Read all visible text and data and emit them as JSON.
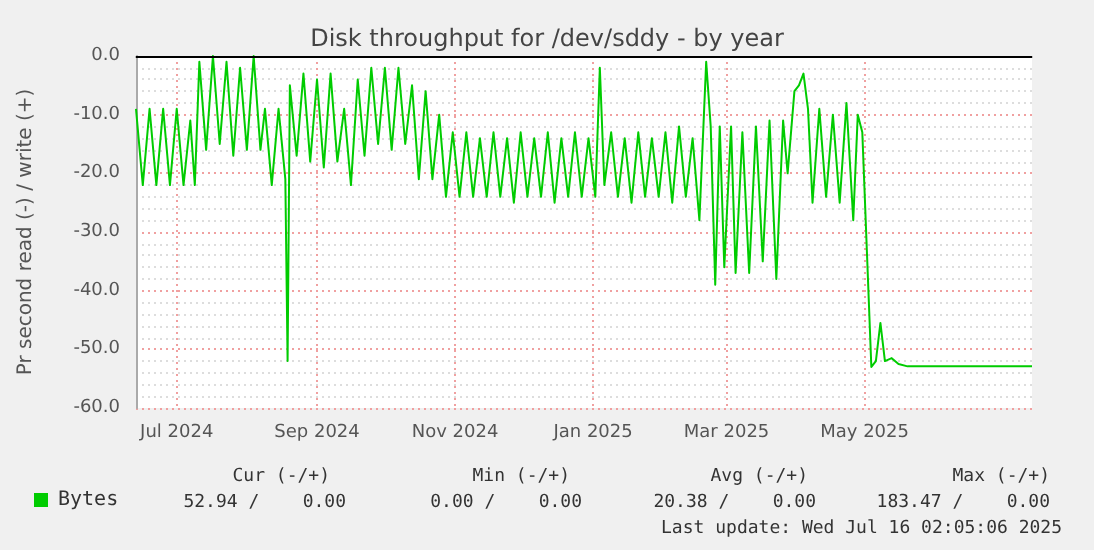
{
  "chart_data": {
    "type": "line",
    "title": "Disk throughput for /dev/sddy - by year",
    "ylabel": "Pr second read (-) / write (+)",
    "xlim": [
      "2024-06-13",
      "2025-07-14"
    ],
    "xticks": [
      {
        "value": "2024-07-01",
        "label": "Jul 2024"
      },
      {
        "value": "2024-09-01",
        "label": "Sep 2024"
      },
      {
        "value": "2024-11-01",
        "label": "Nov 2024"
      },
      {
        "value": "2025-01-01",
        "label": "Jan 2025"
      },
      {
        "value": "2025-03-01",
        "label": "Mar 2025"
      },
      {
        "value": "2025-05-01",
        "label": "May 2025"
      }
    ],
    "ylim": [
      -60,
      0
    ],
    "yticks": [
      {
        "value": -60,
        "label": "-60.0"
      },
      {
        "value": -50,
        "label": "-50.0"
      },
      {
        "value": -40,
        "label": "-40.0"
      },
      {
        "value": -30,
        "label": "-30.0"
      },
      {
        "value": -20,
        "label": "-20.0"
      },
      {
        "value": -10,
        "label": "-10.0"
      },
      {
        "value": 0,
        "label": "0.0"
      }
    ],
    "grid": true,
    "legend": "bottom left",
    "marker": "none",
    "line_style": "solid",
    "ref_lines": [
      {
        "axis": "y",
        "value": 0,
        "label": null,
        "color": "#000000"
      }
    ],
    "annotations": [
      "Cur (-/+)",
      "Min (-/+)",
      "Avg (-/+)",
      "Max (-/+)",
      "52.94 /    0.00",
      "0.00 /    0.00",
      "20.38 /    0.00",
      "183.47 /    0.00",
      "Last update: Wed Jul 16 02:05:06 2025"
    ],
    "x": [
      "2024-06-13",
      "2024-06-16",
      "2024-06-19",
      "2024-06-22",
      "2024-06-25",
      "2024-06-28",
      "2024-07-01",
      "2024-07-04",
      "2024-07-07",
      "2024-07-09",
      "2024-07-11",
      "2024-07-14",
      "2024-07-17",
      "2024-07-20",
      "2024-07-23",
      "2024-07-26",
      "2024-07-29",
      "2024-08-01",
      "2024-08-04",
      "2024-08-07",
      "2024-08-09",
      "2024-08-12",
      "2024-08-15",
      "2024-08-18",
      "2024-08-19",
      "2024-08-20",
      "2024-08-23",
      "2024-08-26",
      "2024-08-29",
      "2024-09-01",
      "2024-09-04",
      "2024-09-07",
      "2024-09-10",
      "2024-09-13",
      "2024-09-16",
      "2024-09-19",
      "2024-09-22",
      "2024-09-25",
      "2024-09-28",
      "2024-10-01",
      "2024-10-04",
      "2024-10-07",
      "2024-10-10",
      "2024-10-13",
      "2024-10-16",
      "2024-10-19",
      "2024-10-22",
      "2024-10-25",
      "2024-10-28",
      "2024-10-31",
      "2024-11-03",
      "2024-11-06",
      "2024-11-09",
      "2024-11-12",
      "2024-11-15",
      "2024-11-18",
      "2024-11-21",
      "2024-11-24",
      "2024-11-27",
      "2024-11-30",
      "2024-12-03",
      "2024-12-06",
      "2024-12-09",
      "2024-12-12",
      "2024-12-15",
      "2024-12-18",
      "2024-12-21",
      "2024-12-24",
      "2024-12-27",
      "2024-12-30",
      "2025-01-02",
      "2025-01-04",
      "2025-01-06",
      "2025-01-09",
      "2025-01-12",
      "2025-01-15",
      "2025-01-18",
      "2025-01-21",
      "2025-01-24",
      "2025-01-27",
      "2025-01-30",
      "2025-02-02",
      "2025-02-05",
      "2025-02-08",
      "2025-02-11",
      "2025-02-14",
      "2025-02-17",
      "2025-02-20",
      "2025-02-22",
      "2025-02-24",
      "2025-02-26",
      "2025-02-28",
      "2025-03-03",
      "2025-03-05",
      "2025-03-08",
      "2025-03-11",
      "2025-03-14",
      "2025-03-17",
      "2025-03-20",
      "2025-03-23",
      "2025-03-26",
      "2025-03-28",
      "2025-03-31",
      "2025-04-02",
      "2025-04-04",
      "2025-04-06",
      "2025-04-08",
      "2025-04-11",
      "2025-04-14",
      "2025-04-17",
      "2025-04-20",
      "2025-04-23",
      "2025-04-26",
      "2025-04-28",
      "2025-04-30",
      "2025-05-04",
      "2025-05-06",
      "2025-05-08",
      "2025-05-10",
      "2025-05-13",
      "2025-05-16",
      "2025-05-20",
      "2025-07-14"
    ],
    "series": [
      {
        "name": "Bytes",
        "color": "#00cc00",
        "values": [
          -9,
          -22,
          -9,
          -22,
          -9,
          -22,
          -9,
          -22,
          -11,
          -22,
          -1,
          -16,
          0,
          -15,
          -1,
          -17,
          -2,
          -16,
          0,
          -16,
          -9,
          -22,
          -9,
          -21,
          -52,
          -5,
          -17,
          -3,
          -18,
          -4,
          -19,
          -3,
          -18,
          -9,
          -22,
          -4,
          -17,
          -2,
          -15,
          -2,
          -16,
          -2,
          -15,
          -5,
          -21,
          -6,
          -21,
          -10,
          -24,
          -13,
          -24,
          -13,
          -24,
          -14,
          -24,
          -13,
          -24,
          -14,
          -25,
          -13,
          -24,
          -14,
          -24,
          -13,
          -25,
          -14,
          -24,
          -13,
          -24,
          -14,
          -24,
          -2,
          -22,
          -13,
          -24,
          -14,
          -25,
          -13,
          -24,
          -14,
          -24,
          -13,
          -25,
          -12,
          -24,
          -14,
          -28,
          -1,
          -12,
          -39,
          -12,
          -36,
          -12,
          -37,
          -13,
          -37,
          -12,
          -35,
          -11,
          -38,
          -11,
          -20,
          -6,
          -5,
          -3,
          -9,
          -25,
          -9,
          -24,
          -10,
          -25,
          -8,
          -28,
          -10,
          -13,
          -53,
          -52,
          -45.5,
          -52,
          -51.5,
          -52.5,
          -52.9,
          -52.9
        ]
      }
    ]
  }
}
